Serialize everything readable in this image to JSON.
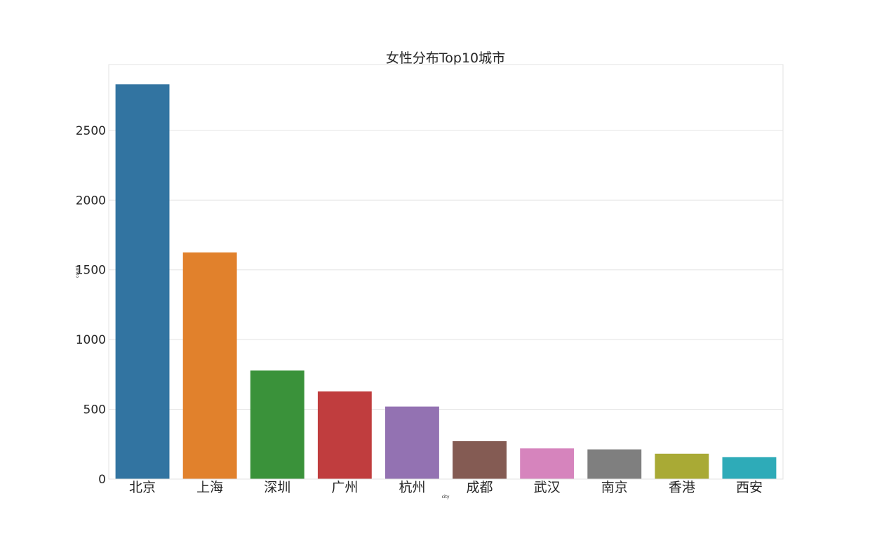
{
  "chart_data": {
    "type": "bar",
    "title": "女性分布Top10城市",
    "xlabel": "city",
    "ylabel": "count",
    "categories": [
      "北京",
      "上海",
      "深圳",
      "广州",
      "杭州",
      "成都",
      "武汉",
      "南京",
      "香港",
      "西安"
    ],
    "values": [
      2830,
      1625,
      778,
      628,
      520,
      272,
      220,
      213,
      182,
      157
    ],
    "colors": [
      "#3274a1",
      "#e1812c",
      "#3a923a",
      "#c03d3e",
      "#9372b2",
      "#845b53",
      "#d684bd",
      "#7f7f7f",
      "#a9aa35",
      "#2eabb8"
    ],
    "yticks": [
      0,
      500,
      1000,
      1500,
      2000,
      2500
    ],
    "ylim": [
      0,
      2972
    ],
    "grid": true,
    "legend": "none"
  }
}
